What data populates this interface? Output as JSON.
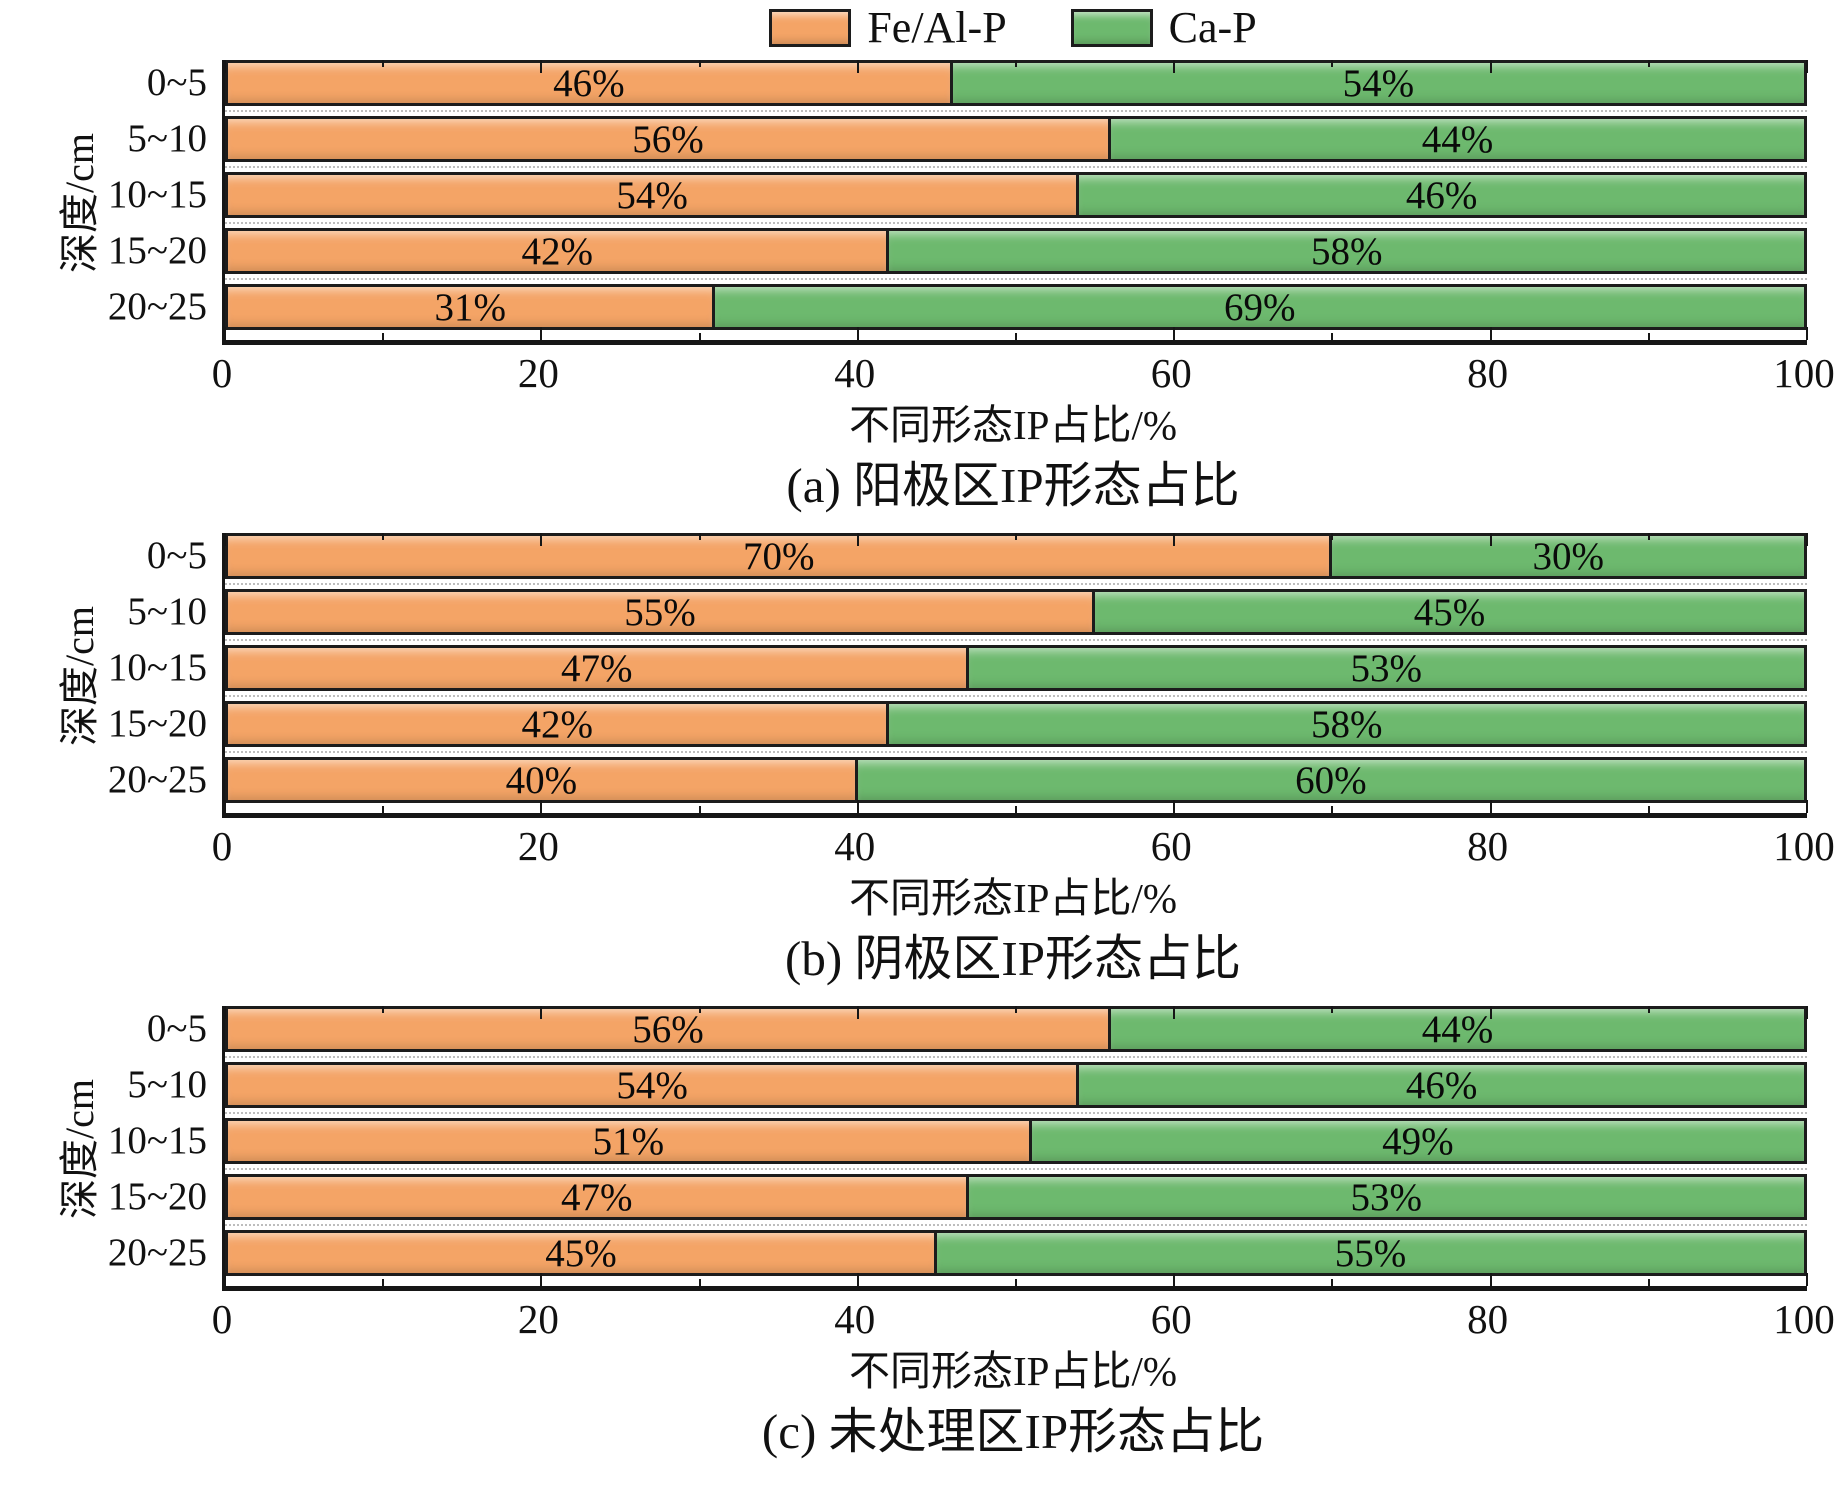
{
  "figure": {
    "legend": [
      {
        "label": "Fe/Al-P",
        "color": "#F4A466"
      },
      {
        "label": "Ca-P",
        "color": "#6DB96E"
      }
    ]
  },
  "chart_data": [
    {
      "type": "bar",
      "orientation": "horizontal",
      "stacked": true,
      "unit": "%",
      "caption": "(a) 阳极区IP形态占比",
      "xlabel": "不同形态IP占比/%",
      "ylabel": "深度/cm",
      "categories": [
        "0~5",
        "5~10",
        "10~15",
        "15~20",
        "20~25"
      ],
      "series": [
        {
          "name": "Fe/Al-P",
          "color": "#F4A466",
          "values": [
            46,
            56,
            54,
            42,
            31
          ]
        },
        {
          "name": "Ca-P",
          "color": "#6DB96E",
          "values": [
            54,
            44,
            46,
            58,
            69
          ]
        }
      ],
      "xlim": [
        0,
        100
      ],
      "xticks": [
        0,
        20,
        40,
        60,
        80,
        100
      ],
      "minor_tick_step": 10,
      "grid": "dotted-between-rows",
      "legend_position": "top"
    },
    {
      "type": "bar",
      "orientation": "horizontal",
      "stacked": true,
      "unit": "%",
      "caption": "(b) 阴极区IP形态占比",
      "xlabel": "不同形态IP占比/%",
      "ylabel": "深度/cm",
      "categories": [
        "0~5",
        "5~10",
        "10~15",
        "15~20",
        "20~25"
      ],
      "series": [
        {
          "name": "Fe/Al-P",
          "color": "#F4A466",
          "values": [
            70,
            55,
            47,
            42,
            40
          ]
        },
        {
          "name": "Ca-P",
          "color": "#6DB96E",
          "values": [
            30,
            45,
            53,
            58,
            60
          ]
        }
      ],
      "xlim": [
        0,
        100
      ],
      "xticks": [
        0,
        20,
        40,
        60,
        80,
        100
      ],
      "minor_tick_step": 10,
      "grid": "dotted-between-rows",
      "legend_position": "none"
    },
    {
      "type": "bar",
      "orientation": "horizontal",
      "stacked": true,
      "unit": "%",
      "caption": "(c) 未处理区IP形态占比",
      "xlabel": "不同形态IP占比/%",
      "ylabel": "深度/cm",
      "categories": [
        "0~5",
        "5~10",
        "10~15",
        "15~20",
        "20~25"
      ],
      "series": [
        {
          "name": "Fe/Al-P",
          "color": "#F4A466",
          "values": [
            56,
            54,
            51,
            47,
            45
          ]
        },
        {
          "name": "Ca-P",
          "color": "#6DB96E",
          "values": [
            44,
            46,
            49,
            53,
            55
          ]
        }
      ],
      "xlim": [
        0,
        100
      ],
      "xticks": [
        0,
        20,
        40,
        60,
        80,
        100
      ],
      "minor_tick_step": 10,
      "grid": "dotted-between-rows",
      "legend_position": "none"
    }
  ]
}
